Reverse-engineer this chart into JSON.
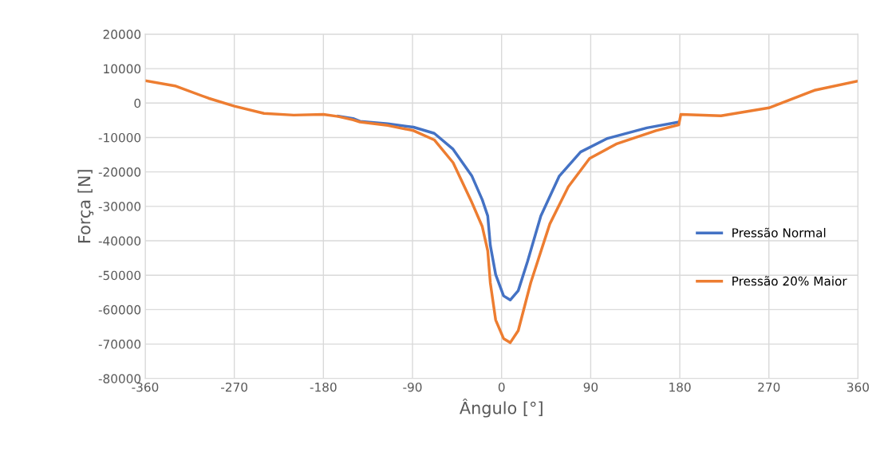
{
  "chart_data": {
    "type": "line",
    "xlabel": "Ângulo [°]",
    "ylabel": "Força [N]",
    "xlim": [
      -360,
      360
    ],
    "xticks": [
      -360,
      -270,
      -180,
      -90,
      0,
      90,
      180,
      270,
      360
    ],
    "ylim": [
      -80000,
      20000
    ],
    "yticks": [
      -80000,
      -70000,
      -60000,
      -50000,
      -40000,
      -30000,
      -20000,
      -10000,
      0,
      10000,
      20000
    ],
    "grid": true,
    "legend": "right",
    "marker": "none",
    "line_style": "solid",
    "series": [
      {
        "name": "Pressão Normal",
        "color": "#4472c4",
        "x": [
          -165,
          -150,
          -143,
          -115,
          -89,
          -68,
          -49,
          -30,
          -19.5,
          -14,
          -11.4,
          -6,
          2,
          8.7,
          16.8,
          26.2,
          39.6,
          58.3,
          79.8,
          106.6,
          146.8,
          179
        ],
        "values": [
          -3800,
          -4500,
          -5300,
          -6000,
          -7000,
          -8800,
          -13400,
          -21200,
          -28100,
          -32800,
          -41300,
          -49800,
          -56000,
          -57200,
          -54500,
          -46000,
          -32800,
          -21200,
          -14200,
          -10300,
          -7200,
          -5500
        ]
      },
      {
        "name": "Pressão 20% Maior",
        "color": "#ed7d31",
        "x": [
          -360,
          -330,
          -296,
          -270,
          -240,
          -210,
          -180,
          -165,
          -150,
          -143,
          -115,
          -89,
          -68,
          -49,
          -30,
          -19.5,
          -14,
          -11.4,
          -6,
          2,
          8.7,
          16.8,
          29.4,
          48.7,
          67.4,
          88.9,
          115.7,
          156,
          179,
          181,
          221.6,
          270,
          316,
          360
        ],
        "values": [
          6500,
          5000,
          1400,
          -900,
          -3000,
          -3500,
          -3300,
          -3900,
          -4900,
          -5500,
          -6500,
          -8000,
          -10700,
          -17300,
          -28900,
          -35900,
          -42900,
          -52200,
          -63000,
          -68400,
          -69600,
          -66100,
          -52200,
          -35100,
          -24300,
          -16100,
          -11900,
          -8000,
          -6300,
          -3300,
          -3700,
          -1400,
          3700,
          6400
        ]
      }
    ]
  }
}
